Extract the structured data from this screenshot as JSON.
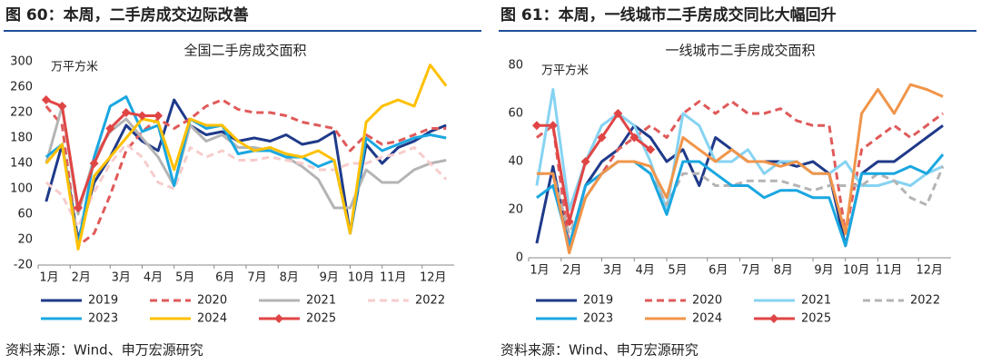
{
  "chart_data": [
    {
      "type": "line",
      "title": "图 60：本周，二手房成交边际改善",
      "subtitle": "全国二手房成交面积",
      "ylabel": "万平方米",
      "source": "资料来源：Wind、申万宏源研究",
      "x": [
        1,
        3,
        5,
        7,
        9,
        11,
        13,
        15,
        17,
        19,
        21,
        23,
        25,
        27,
        29,
        31,
        33,
        35,
        37,
        39,
        41,
        43,
        45,
        47,
        49,
        51
      ],
      "xlim": [
        0,
        52
      ],
      "xticks": [
        {
          "value": 0,
          "label": "1月"
        },
        {
          "value": 4,
          "label": "2月"
        },
        {
          "value": 9,
          "label": "3月"
        },
        {
          "value": 13,
          "label": "4月"
        },
        {
          "value": 17,
          "label": "5月"
        },
        {
          "value": 22,
          "label": "6月"
        },
        {
          "value": 26,
          "label": "7月"
        },
        {
          "value": 30,
          "label": "8月"
        },
        {
          "value": 35,
          "label": "9月"
        },
        {
          "value": 39,
          "label": "10月"
        },
        {
          "value": 43,
          "label": "11月"
        },
        {
          "value": 48,
          "label": "12月"
        }
      ],
      "ylim": [
        -20,
        300
      ],
      "yticks": [
        -20,
        20,
        60,
        100,
        140,
        180,
        220,
        260,
        300
      ],
      "series": [
        {
          "name": "2019",
          "color": "#1f3a8a",
          "style": "solid",
          "values": [
            80,
            170,
            20,
            110,
            150,
            200,
            175,
            160,
            240,
            200,
            185,
            190,
            175,
            180,
            175,
            185,
            170,
            175,
            190,
            30,
            170,
            140,
            165,
            175,
            190,
            200
          ]
        },
        {
          "name": "2020",
          "color": "#e05a5a",
          "style": "dashed",
          "values": [
            230,
            200,
            10,
            30,
            90,
            160,
            190,
            210,
            195,
            210,
            230,
            240,
            225,
            220,
            220,
            215,
            205,
            200,
            195,
            160,
            185,
            170,
            175,
            185,
            195,
            195
          ]
        },
        {
          "name": "2021",
          "color": "#b4b4b4",
          "style": "solid",
          "values": [
            140,
            230,
            60,
            150,
            190,
            210,
            180,
            150,
            105,
            200,
            175,
            185,
            165,
            165,
            160,
            150,
            135,
            115,
            70,
            70,
            130,
            110,
            110,
            130,
            140,
            145
          ]
        },
        {
          "name": "2022",
          "color": "#f7cccc",
          "style": "dashed",
          "values": [
            110,
            90,
            40,
            95,
            140,
            170,
            150,
            110,
            100,
            165,
            150,
            160,
            145,
            145,
            150,
            145,
            140,
            130,
            130,
            140,
            140,
            150,
            155,
            165,
            140,
            115
          ]
        },
        {
          "name": "2023",
          "color": "#1aa7e0",
          "style": "solid",
          "values": [
            150,
            170,
            10,
            150,
            230,
            245,
            190,
            200,
            105,
            210,
            195,
            200,
            155,
            160,
            160,
            150,
            150,
            135,
            145,
            30,
            180,
            160,
            170,
            180,
            185,
            180
          ]
        },
        {
          "name": "2024",
          "color": "#ffc000",
          "style": "solid",
          "values": [
            140,
            170,
            5,
            120,
            150,
            180,
            210,
            205,
            130,
            210,
            200,
            200,
            175,
            160,
            165,
            155,
            150,
            160,
            145,
            30,
            205,
            230,
            240,
            230,
            295,
            262
          ]
        },
        {
          "name": "2025",
          "color": "#e04545",
          "style": "solid",
          "marker": "diamond",
          "values": [
            240,
            230,
            70,
            140,
            195,
            220,
            215,
            215,
            null,
            null,
            null,
            null,
            null,
            null,
            null,
            null,
            null,
            null,
            null,
            null,
            null,
            null,
            null,
            null,
            null,
            null
          ]
        }
      ]
    },
    {
      "type": "line",
      "title": "图 61：本周，一线城市二手房成交同比大幅回升",
      "subtitle": "一线城市二手房成交面积",
      "ylabel": "万平方米",
      "source": "资料来源：Wind、申万宏源研究",
      "x": [
        1,
        3,
        5,
        7,
        9,
        11,
        13,
        15,
        17,
        19,
        21,
        23,
        25,
        27,
        29,
        31,
        33,
        35,
        37,
        39,
        41,
        43,
        45,
        47,
        49,
        51
      ],
      "xlim": [
        0,
        52
      ],
      "xticks": [
        {
          "value": 0,
          "label": "1月"
        },
        {
          "value": 4,
          "label": "2月"
        },
        {
          "value": 9,
          "label": "3月"
        },
        {
          "value": 13,
          "label": "4月"
        },
        {
          "value": 17,
          "label": "5月"
        },
        {
          "value": 22,
          "label": "6月"
        },
        {
          "value": 26,
          "label": "7月"
        },
        {
          "value": 30,
          "label": "8月"
        },
        {
          "value": 35,
          "label": "9月"
        },
        {
          "value": 39,
          "label": "10月"
        },
        {
          "value": 43,
          "label": "11月"
        },
        {
          "value": 48,
          "label": "12月"
        }
      ],
      "ylim": [
        0,
        80
      ],
      "yticks": [
        0,
        20,
        40,
        60,
        80
      ],
      "series": [
        {
          "name": "2019",
          "color": "#1f3a8a",
          "style": "solid",
          "values": [
            6,
            38,
            5,
            30,
            40,
            45,
            55,
            50,
            40,
            45,
            30,
            50,
            45,
            40,
            40,
            40,
            38,
            40,
            35,
            5,
            35,
            40,
            40,
            45,
            50,
            55
          ]
        },
        {
          "name": "2020",
          "color": "#e05a5a",
          "style": "dashed",
          "values": [
            50,
            55,
            5,
            25,
            35,
            45,
            50,
            55,
            50,
            60,
            65,
            60,
            65,
            60,
            60,
            62,
            57,
            55,
            55,
            10,
            45,
            50,
            55,
            50,
            55,
            60
          ]
        },
        {
          "name": "2021",
          "color": "#86d3f2",
          "style": "solid",
          "values": [
            30,
            70,
            20,
            40,
            55,
            60,
            55,
            40,
            20,
            60,
            55,
            40,
            40,
            45,
            35,
            40,
            40,
            35,
            35,
            40,
            30,
            30,
            32,
            30,
            35,
            38
          ]
        },
        {
          "name": "2022",
          "color": "#b4b4b4",
          "style": "dashed",
          "values": [
            35,
            35,
            10,
            25,
            35,
            40,
            40,
            35,
            22,
            35,
            35,
            30,
            30,
            32,
            32,
            32,
            30,
            28,
            30,
            30,
            30,
            35,
            32,
            25,
            22,
            38
          ]
        },
        {
          "name": "2023",
          "color": "#1aa7e0",
          "style": "solid",
          "values": [
            25,
            30,
            5,
            30,
            35,
            40,
            40,
            35,
            18,
            40,
            40,
            35,
            30,
            30,
            25,
            28,
            28,
            25,
            25,
            5,
            35,
            35,
            35,
            38,
            35,
            43
          ]
        },
        {
          "name": "2024",
          "color": "#f0954a",
          "style": "solid",
          "values": [
            35,
            35,
            2,
            25,
            35,
            40,
            40,
            38,
            25,
            50,
            45,
            40,
            45,
            40,
            40,
            38,
            40,
            35,
            35,
            10,
            60,
            70,
            60,
            72,
            70,
            67
          ]
        },
        {
          "name": "2025",
          "color": "#e04545",
          "style": "solid",
          "marker": "diamond",
          "values": [
            55,
            55,
            15,
            40,
            50,
            60,
            50,
            45,
            null,
            null,
            null,
            null,
            null,
            null,
            null,
            null,
            null,
            null,
            null,
            null,
            null,
            null,
            null,
            null,
            null,
            null
          ]
        }
      ]
    }
  ]
}
